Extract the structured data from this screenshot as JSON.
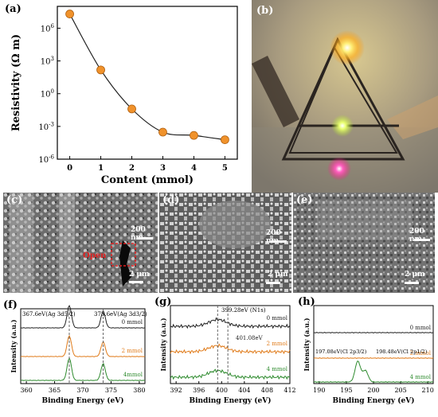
{
  "panel_labels": {
    "a": "(a)",
    "b": "(b)",
    "c": "(c)",
    "d": "(d)",
    "e": "(e)",
    "f": "(f)",
    "g": "(g)",
    "h": "(h)"
  },
  "sem": {
    "c": {
      "scale_big": "200 nm",
      "scale_small": "2 μm",
      "crack_label": "Open"
    },
    "d": {
      "scale_big": "200 nm",
      "scale_small": "2 μm"
    },
    "e": {
      "scale_big": "200 nm",
      "scale_small": "2 μm"
    }
  },
  "colors": {
    "marker": "#f0922b",
    "orange": "#e07b1a",
    "green": "#2e8b2e",
    "black": "#222222",
    "crack_box": "#e02020"
  },
  "chart_data": [
    {
      "type": "line",
      "panel": "a",
      "xlabel": "Content (mmol)",
      "ylabel": "Resistivity (Ω m)",
      "yscale": "log",
      "x": [
        0,
        1,
        2,
        3,
        4,
        5
      ],
      "y": [
        20000000.0,
        150.0,
        0.04,
        0.0003,
        0.00015,
        6e-05
      ],
      "xticks": [
        "0",
        "1",
        "2",
        "3",
        "4",
        "5"
      ],
      "yticks": [
        "10-6",
        "10-3",
        "100",
        "103",
        "106"
      ],
      "ylim": [
        1e-06,
        100000000.0
      ]
    },
    {
      "type": "line",
      "panel": "f",
      "xlabel": "Binding Energy (eV)",
      "ylabel": "Intensity (a.u.)",
      "xticks": [
        "360",
        "365",
        "370",
        "375",
        "380"
      ],
      "xlim": [
        359,
        381
      ],
      "annotations": [
        "367.6eV(Ag 3d5/2)",
        "373.6eV(Ag 3d3/2)"
      ],
      "series": [
        {
          "name": "0 mmol",
          "peaks": [
            {
              "x": 367.6,
              "h": 1.0
            },
            {
              "x": 373.6,
              "h": 0.75
            }
          ]
        },
        {
          "name": "2 mmol",
          "peaks": [
            {
              "x": 367.6,
              "h": 1.0
            },
            {
              "x": 373.6,
              "h": 0.7
            }
          ]
        },
        {
          "name": "4mmol",
          "peaks": [
            {
              "x": 367.6,
              "h": 1.0
            },
            {
              "x": 373.6,
              "h": 0.75
            }
          ]
        }
      ]
    },
    {
      "type": "line",
      "panel": "g",
      "xlabel": "Binding Energy (eV)",
      "ylabel": "Intensity (a.u.)",
      "xticks": [
        "392",
        "396",
        "400",
        "404",
        "408",
        "412"
      ],
      "xlim": [
        391,
        412
      ],
      "annotations": [
        "399.28eV (N1s)",
        "401.08eV"
      ],
      "series": [
        {
          "name": "0 mmol",
          "peaks": [
            {
              "x": 399.3,
              "h": 0.6
            }
          ]
        },
        {
          "name": "2 mmol",
          "peaks": [
            {
              "x": 399.3,
              "h": 0.55
            }
          ]
        },
        {
          "name": "4 mmol",
          "peaks": [
            {
              "x": 399.3,
              "h": 0.6
            }
          ]
        }
      ]
    },
    {
      "type": "line",
      "panel": "h",
      "xlabel": "Binding Energy (eV)",
      "ylabel": "Intensity (a.u.)",
      "xticks": [
        "190",
        "195",
        "200",
        "205",
        "210"
      ],
      "xlim": [
        189,
        211
      ],
      "annotations": [
        "197.08eV(Cl 2p3/2)",
        "198.48eV(Cl 2p1/2)"
      ],
      "series": [
        {
          "name": "0 mmol",
          "peaks": []
        },
        {
          "name": "2 mmol",
          "peaks": []
        },
        {
          "name": "4 mmol",
          "peaks": [
            {
              "x": 197.1,
              "h": 1.0
            },
            {
              "x": 198.5,
              "h": 0.55
            }
          ]
        }
      ]
    }
  ]
}
